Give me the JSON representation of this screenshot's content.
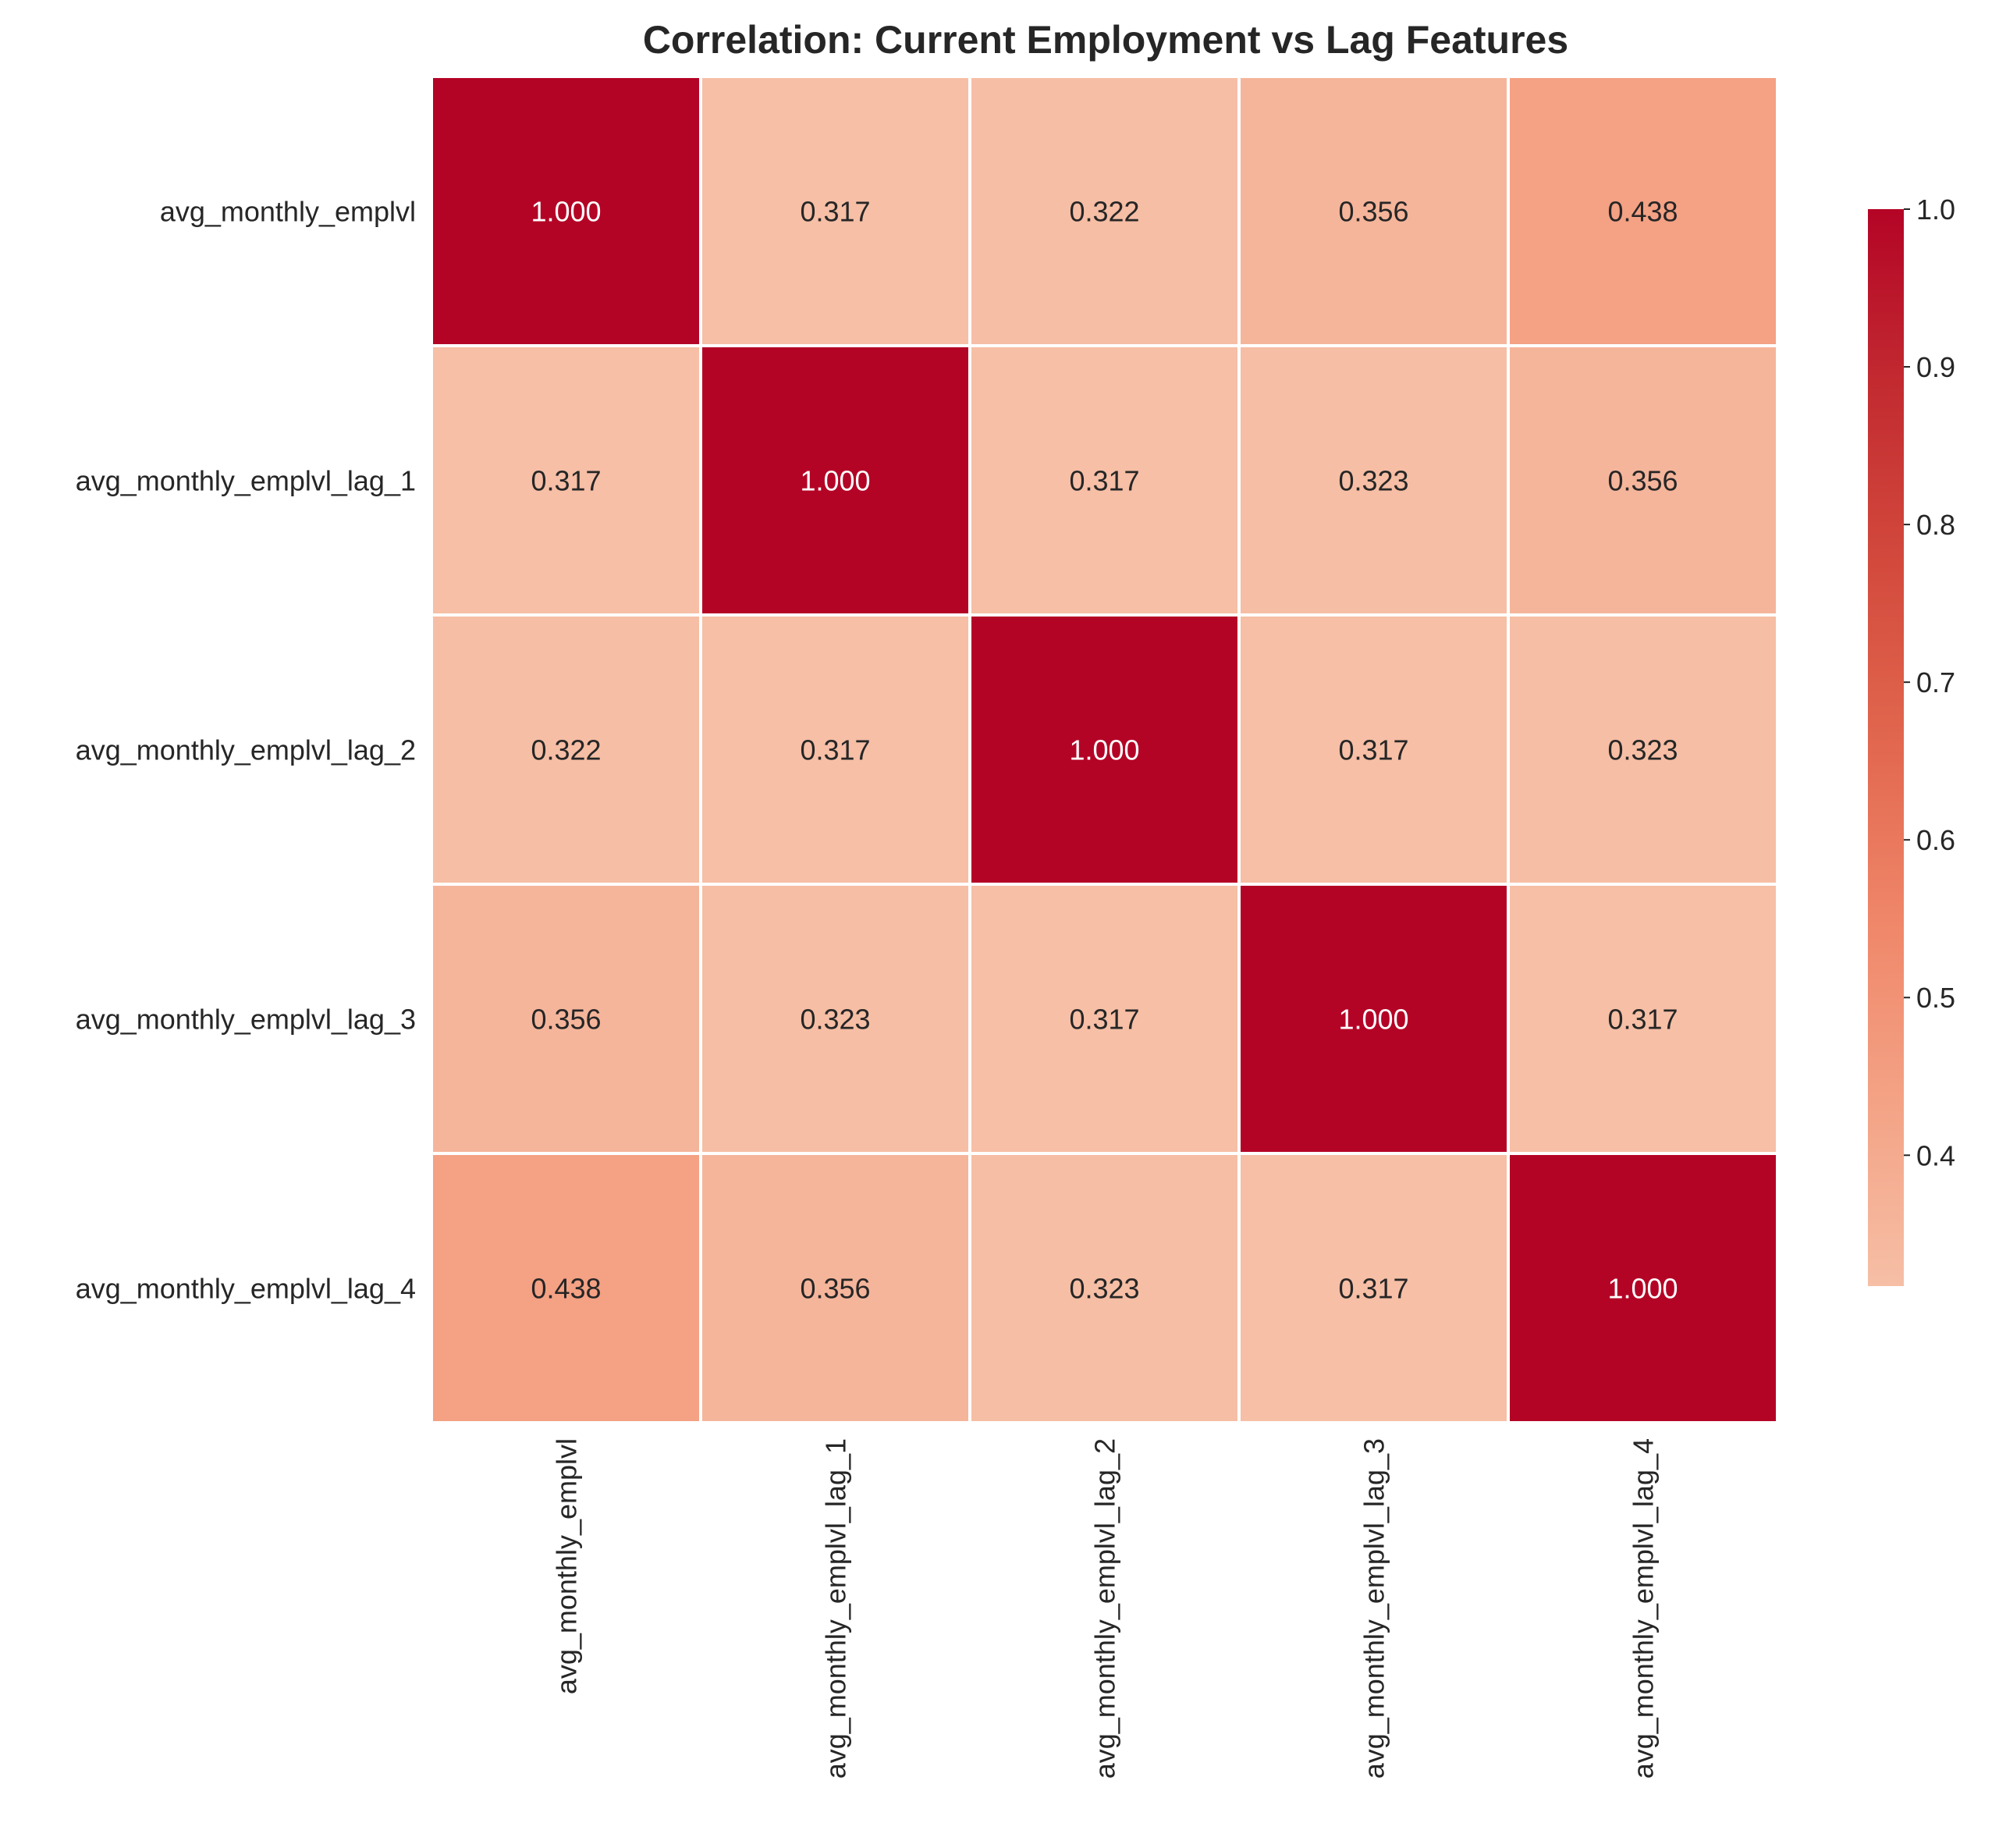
{
  "chart_data": {
    "type": "heatmap",
    "title": "Correlation: Current Employment vs Lag Features",
    "rows": [
      "avg_monthly_emplvl",
      "avg_monthly_emplvl_lag_1",
      "avg_monthly_emplvl_lag_2",
      "avg_monthly_emplvl_lag_3",
      "avg_monthly_emplvl_lag_4"
    ],
    "columns": [
      "avg_monthly_emplvl",
      "avg_monthly_emplvl_lag_1",
      "avg_monthly_emplvl_lag_2",
      "avg_monthly_emplvl_lag_3",
      "avg_monthly_emplvl_lag_4"
    ],
    "values": [
      [
        1.0,
        0.317,
        0.322,
        0.356,
        0.438
      ],
      [
        0.317,
        1.0,
        0.317,
        0.323,
        0.356
      ],
      [
        0.322,
        0.317,
        1.0,
        0.317,
        0.323
      ],
      [
        0.356,
        0.323,
        0.317,
        1.0,
        0.317
      ],
      [
        0.438,
        0.356,
        0.323,
        0.317,
        1.0
      ]
    ],
    "value_format": "3 decimals",
    "colormap": "coolwarm (upper half)",
    "color_range": [
      0.317,
      1.0
    ],
    "colorbar": {
      "ticks": [
        0.4,
        0.5,
        0.6,
        0.7,
        0.8,
        0.9,
        1.0
      ],
      "tick_labels": [
        "0.4",
        "0.5",
        "0.6",
        "0.7",
        "0.8",
        "0.9",
        "1.0"
      ],
      "placement": "right"
    },
    "colors": {
      "low": "#f6bfa6",
      "high": "#b40426",
      "gridlines": "#ffffff"
    }
  }
}
